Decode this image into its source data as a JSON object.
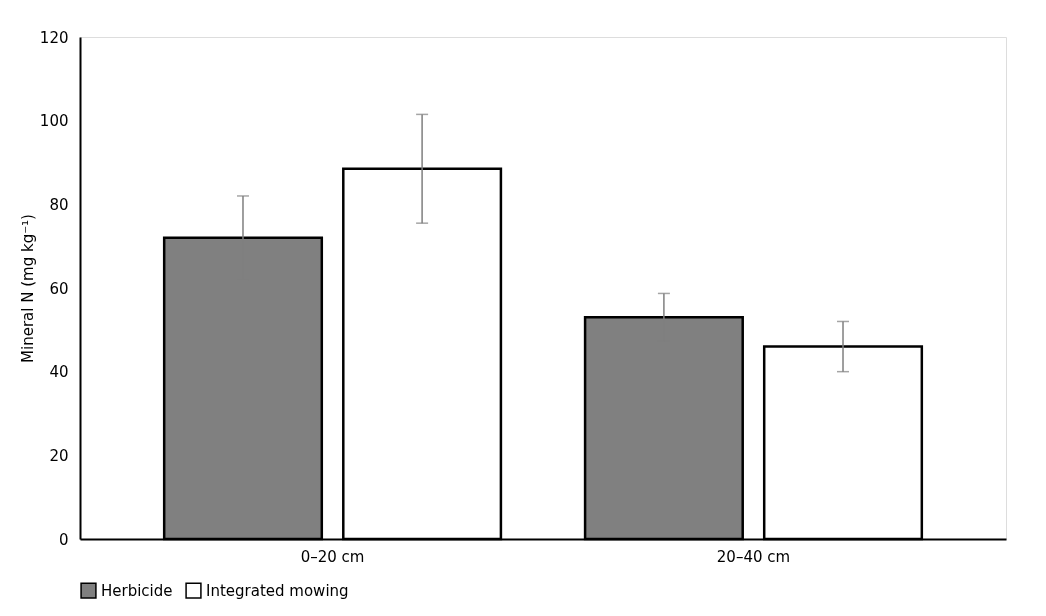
{
  "chart_data": {
    "type": "bar",
    "ylabel": "Mineral N (mg kg⁻¹)",
    "categories": [
      "0–20 cm",
      "20–40 cm"
    ],
    "series": [
      {
        "name": "Herbicide",
        "color": "#808080",
        "values": [
          72,
          53
        ],
        "errors": [
          10,
          5.7
        ]
      },
      {
        "name": "Integrated mowing",
        "color": "#ffffff",
        "values": [
          88.5,
          46
        ],
        "errors": [
          13,
          6
        ]
      }
    ],
    "ylim": [
      0,
      120
    ],
    "yticks": [
      0,
      20,
      40,
      60,
      80,
      100,
      120
    ],
    "grid": false,
    "legend": "bottom"
  }
}
